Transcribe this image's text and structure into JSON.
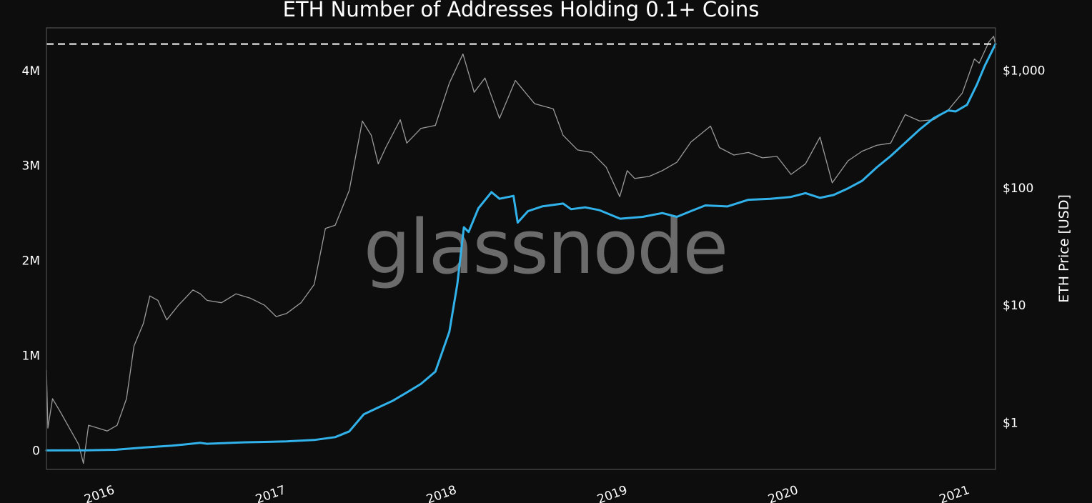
{
  "chart_data": {
    "type": "line",
    "title": "ETH Number of Addresses Holding 0.1+ Coins",
    "watermark": "glassnode",
    "x_tick_labels": [
      "2016",
      "2017",
      "2018",
      "2019",
      "2020",
      "2021"
    ],
    "x_range": [
      "2015-08-07",
      "2021-02-24"
    ],
    "y_left": {
      "label": "",
      "tick_labels": [
        "0",
        "1M",
        "2M",
        "3M",
        "4M"
      ],
      "tick_values": [
        0,
        1000000,
        2000000,
        3000000,
        4000000
      ],
      "range": [
        -200000,
        4450000
      ]
    },
    "y_right": {
      "label": "ETH Price [USD]",
      "scale": "log",
      "tick_labels": [
        "$1",
        "$10",
        "$100",
        "$1,000"
      ],
      "tick_values": [
        1,
        10,
        100,
        1000
      ],
      "range": [
        0.4,
        2300
      ]
    },
    "ath_reference": {
      "style": "dashed",
      "value": 4280000
    },
    "colors": {
      "background": "#0d0d0d",
      "addresses": "#31b2ea",
      "price": "#9a9a9a",
      "frame": "#4f4f4f",
      "ath_line": "#ffffff"
    },
    "series": [
      {
        "axis": "left",
        "color": "#31b2ea",
        "points": [
          [
            "2015-08-07",
            0
          ],
          [
            "2015-11-01",
            2000
          ],
          [
            "2016-01-01",
            7000
          ],
          [
            "2016-03-01",
            30000
          ],
          [
            "2016-05-01",
            50000
          ],
          [
            "2016-07-01",
            80000
          ],
          [
            "2016-07-15",
            70000
          ],
          [
            "2016-10-01",
            85000
          ],
          [
            "2017-01-01",
            95000
          ],
          [
            "2017-03-01",
            110000
          ],
          [
            "2017-04-15",
            140000
          ],
          [
            "2017-05-15",
            200000
          ],
          [
            "2017-06-15",
            380000
          ],
          [
            "2017-07-15",
            450000
          ],
          [
            "2017-08-15",
            520000
          ],
          [
            "2017-09-15",
            610000
          ],
          [
            "2017-10-15",
            700000
          ],
          [
            "2017-11-15",
            830000
          ],
          [
            "2017-12-15",
            1250000
          ],
          [
            "2018-01-01",
            1750000
          ],
          [
            "2018-01-15",
            2350000
          ],
          [
            "2018-01-25",
            2300000
          ],
          [
            "2018-02-15",
            2550000
          ],
          [
            "2018-03-15",
            2720000
          ],
          [
            "2018-04-01",
            2650000
          ],
          [
            "2018-05-01",
            2680000
          ],
          [
            "2018-05-10",
            2400000
          ],
          [
            "2018-06-01",
            2520000
          ],
          [
            "2018-07-01",
            2570000
          ],
          [
            "2018-08-15",
            2600000
          ],
          [
            "2018-09-01",
            2540000
          ],
          [
            "2018-10-01",
            2560000
          ],
          [
            "2018-11-01",
            2530000
          ],
          [
            "2018-12-15",
            2440000
          ],
          [
            "2019-02-01",
            2460000
          ],
          [
            "2019-03-15",
            2500000
          ],
          [
            "2019-04-15",
            2460000
          ],
          [
            "2019-05-15",
            2520000
          ],
          [
            "2019-06-15",
            2580000
          ],
          [
            "2019-08-01",
            2570000
          ],
          [
            "2019-09-15",
            2640000
          ],
          [
            "2019-11-01",
            2650000
          ],
          [
            "2019-12-15",
            2670000
          ],
          [
            "2020-01-15",
            2710000
          ],
          [
            "2020-02-15",
            2660000
          ],
          [
            "2020-03-15",
            2690000
          ],
          [
            "2020-04-15",
            2760000
          ],
          [
            "2020-05-15",
            2840000
          ],
          [
            "2020-06-15",
            2980000
          ],
          [
            "2020-07-15",
            3100000
          ],
          [
            "2020-08-15",
            3240000
          ],
          [
            "2020-09-15",
            3380000
          ],
          [
            "2020-10-15",
            3500000
          ],
          [
            "2020-11-15",
            3580000
          ],
          [
            "2020-12-01",
            3570000
          ],
          [
            "2020-12-25",
            3640000
          ],
          [
            "2021-01-15",
            3850000
          ],
          [
            "2021-02-01",
            4050000
          ],
          [
            "2021-02-24",
            4280000
          ]
        ]
      },
      {
        "axis": "right",
        "color": "#9a9a9a",
        "points": [
          [
            "2015-08-07",
            2.8
          ],
          [
            "2015-08-10",
            0.9
          ],
          [
            "2015-08-20",
            1.6
          ],
          [
            "2015-09-05",
            1.25
          ],
          [
            "2015-09-25",
            0.9
          ],
          [
            "2015-10-15",
            0.65
          ],
          [
            "2015-10-25",
            0.45
          ],
          [
            "2015-11-05",
            0.95
          ],
          [
            "2015-11-25",
            0.9
          ],
          [
            "2015-12-15",
            0.85
          ],
          [
            "2016-01-05",
            0.95
          ],
          [
            "2016-01-25",
            1.6
          ],
          [
            "2016-02-10",
            4.5
          ],
          [
            "2016-03-01",
            7
          ],
          [
            "2016-03-15",
            12
          ],
          [
            "2016-04-01",
            11
          ],
          [
            "2016-04-20",
            7.5
          ],
          [
            "2016-05-15",
            10
          ],
          [
            "2016-06-15",
            13.5
          ],
          [
            "2016-07-01",
            12.5
          ],
          [
            "2016-07-15",
            11
          ],
          [
            "2016-08-15",
            10.5
          ],
          [
            "2016-09-15",
            12.5
          ],
          [
            "2016-10-15",
            11.5
          ],
          [
            "2016-11-15",
            10
          ],
          [
            "2016-12-10",
            8
          ],
          [
            "2017-01-01",
            8.5
          ],
          [
            "2017-02-01",
            10.5
          ],
          [
            "2017-03-01",
            15
          ],
          [
            "2017-03-25",
            45
          ],
          [
            "2017-04-15",
            48
          ],
          [
            "2017-05-15",
            95
          ],
          [
            "2017-06-12",
            370
          ],
          [
            "2017-07-01",
            280
          ],
          [
            "2017-07-16",
            160
          ],
          [
            "2017-08-01",
            220
          ],
          [
            "2017-09-01",
            380
          ],
          [
            "2017-09-15",
            240
          ],
          [
            "2017-10-15",
            320
          ],
          [
            "2017-11-15",
            340
          ],
          [
            "2017-12-15",
            780
          ],
          [
            "2018-01-13",
            1380
          ],
          [
            "2018-02-06",
            650
          ],
          [
            "2018-03-01",
            860
          ],
          [
            "2018-04-01",
            390
          ],
          [
            "2018-05-05",
            820
          ],
          [
            "2018-06-15",
            520
          ],
          [
            "2018-07-25",
            470
          ],
          [
            "2018-08-15",
            280
          ],
          [
            "2018-09-15",
            210
          ],
          [
            "2018-10-15",
            200
          ],
          [
            "2018-11-15",
            150
          ],
          [
            "2018-12-14",
            84
          ],
          [
            "2018-12-30",
            140
          ],
          [
            "2019-01-15",
            120
          ],
          [
            "2019-02-15",
            125
          ],
          [
            "2019-03-15",
            140
          ],
          [
            "2019-04-15",
            165
          ],
          [
            "2019-05-15",
            245
          ],
          [
            "2019-06-26",
            335
          ],
          [
            "2019-07-15",
            220
          ],
          [
            "2019-08-15",
            190
          ],
          [
            "2019-09-15",
            200
          ],
          [
            "2019-10-15",
            180
          ],
          [
            "2019-11-15",
            185
          ],
          [
            "2019-12-15",
            130
          ],
          [
            "2020-01-15",
            160
          ],
          [
            "2020-02-15",
            270
          ],
          [
            "2020-03-12",
            110
          ],
          [
            "2020-04-15",
            170
          ],
          [
            "2020-05-15",
            205
          ],
          [
            "2020-06-15",
            230
          ],
          [
            "2020-07-15",
            240
          ],
          [
            "2020-08-15",
            420
          ],
          [
            "2020-09-15",
            370
          ],
          [
            "2020-10-15",
            380
          ],
          [
            "2020-11-15",
            460
          ],
          [
            "2020-12-15",
            640
          ],
          [
            "2021-01-10",
            1250
          ],
          [
            "2021-01-20",
            1150
          ],
          [
            "2021-02-10",
            1750
          ],
          [
            "2021-02-20",
            1950
          ],
          [
            "2021-02-24",
            1650
          ]
        ]
      }
    ]
  }
}
